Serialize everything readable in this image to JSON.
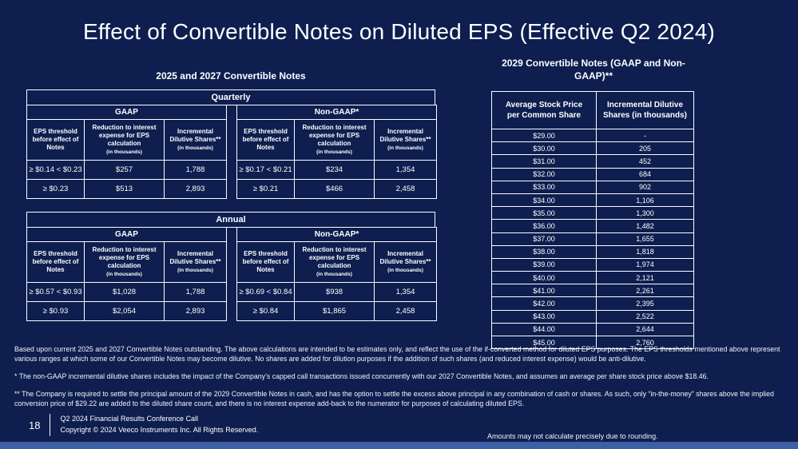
{
  "slide": {
    "title": "Effect of Convertible Notes on Diluted EPS (Effective Q2 2024)",
    "colors": {
      "background": "#0d1e4f",
      "bottom_strip": "#3c5fa6",
      "text": "#ffffff",
      "table_border": "#ffffff"
    }
  },
  "left": {
    "heading": "2025 and 2027 Convertible Notes",
    "cols": {
      "eps": "EPS threshold before effect of Notes",
      "reduction": "Reduction to interest expense for EPS calculation",
      "incremental": "Incremental Dilutive Shares**",
      "thousands": "(in thousands)"
    },
    "quarterly": {
      "title": "Quarterly",
      "gaap": {
        "label": "GAAP",
        "rows": [
          {
            "eps": "≥  $0.14 < $0.23",
            "reduction": "$257",
            "shares": "1,788"
          },
          {
            "eps": "≥  $0.23",
            "reduction": "$513",
            "shares": "2,893"
          }
        ]
      },
      "non_gaap": {
        "label": "Non-GAAP*",
        "rows": [
          {
            "eps": "≥  $0.17 < $0.21",
            "reduction": "$234",
            "shares": "1,354"
          },
          {
            "eps": "≥  $0.21",
            "reduction": "$466",
            "shares": "2,458"
          }
        ]
      }
    },
    "annual": {
      "title": "Annual",
      "gaap": {
        "label": "GAAP",
        "rows": [
          {
            "eps": "≥  $0.57 < $0.93",
            "reduction": "$1,028",
            "shares": "1,788"
          },
          {
            "eps": "≥  $0.93",
            "reduction": "$2,054",
            "shares": "2,893"
          }
        ]
      },
      "non_gaap": {
        "label": "Non-GAAP*",
        "rows": [
          {
            "eps": "≥  $0.69 < $0.84",
            "reduction": "$938",
            "shares": "1,354"
          },
          {
            "eps": "≥  $0.84",
            "reduction": "$1,865",
            "shares": "2,458"
          }
        ]
      }
    }
  },
  "right": {
    "heading": "2029 Convertible Notes (GAAP and Non-GAAP)**",
    "col1": "Average Stock Price per Common Share",
    "col2": "Incremental Dilutive Shares (in thousands)",
    "rows": [
      [
        "$29.00",
        "-"
      ],
      [
        "$30.00",
        "205"
      ],
      [
        "$31.00",
        "452"
      ],
      [
        "$32.00",
        "684"
      ],
      [
        "$33.00",
        "902"
      ],
      [
        "$34.00",
        "1,106"
      ],
      [
        "$35.00",
        "1,300"
      ],
      [
        "$36.00",
        "1,482"
      ],
      [
        "$37.00",
        "1,655"
      ],
      [
        "$38.00",
        "1,818"
      ],
      [
        "$39.00",
        "1,974"
      ],
      [
        "$40.00",
        "2,121"
      ],
      [
        "$41.00",
        "2,261"
      ],
      [
        "$42.00",
        "2,395"
      ],
      [
        "$43.00",
        "2,522"
      ],
      [
        "$44.00",
        "2,644"
      ],
      [
        "$45.00",
        "2,760"
      ]
    ]
  },
  "notes": {
    "note1": "Based upon current 2025 and 2027 Convertible Notes outstanding. The above calculations are intended to be estimates only, and reflect the use of the if-converted method for diluted EPS purposes. The EPS thresholds mentioned above represent various ranges at which some of our Convertible Notes may become dilutive. No shares are added for dilution purposes if the addition of such shares (and reduced interest expense) would be anti-dilutive.",
    "note2": "* The non-GAAP incremental dilutive shares includes the impact of the Company’s capped call transactions issued concurrently with our 2027 Convertible Notes, and assumes an average per share stock price above $18.46.",
    "note3": "** The Company is required to settle the principal amount of the 2029 Convertible Notes in cash, and has the option to settle the excess above principal in any combination of cash or shares. As such, only “in-the-money” shares above the implied conversion price of $29.22 are added to the diluted share count, and there is no interest expense add-back to the numerator for purposes of calculating diluted EPS."
  },
  "footer": {
    "page": "18",
    "line1": "Q2 2024 Financial Results Conference Call",
    "line2": "Copyright © 2024 Veeco Instruments Inc. All Rights Reserved.",
    "rounding": "Amounts may not calculate precisely due to rounding."
  }
}
